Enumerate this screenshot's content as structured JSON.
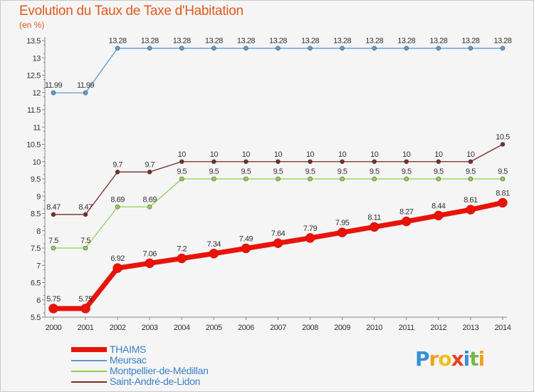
{
  "title": "Evolution du Taux de Taxe d'Habitation",
  "subtitle": "(en %)",
  "brand": {
    "text": "Proxiti",
    "letters": [
      {
        "ch": "P",
        "color": "#3a8fd8"
      },
      {
        "ch": "r",
        "color": "#f0a020"
      },
      {
        "ch": "o",
        "color": "#f0c020"
      },
      {
        "ch": "x",
        "color": "#e8402a"
      },
      {
        "ch": "i",
        "color": "#3a8fd8"
      },
      {
        "ch": "t",
        "color": "#7ab648"
      },
      {
        "ch": "i",
        "color": "#f0a020"
      }
    ]
  },
  "chart_data": {
    "type": "line",
    "title": "Evolution du Taux de Taxe d'Habitation",
    "ylabel": "(en %)",
    "xlabel": "",
    "x": [
      "2000",
      "2001",
      "2002",
      "2003",
      "2004",
      "2005",
      "2006",
      "2007",
      "2008",
      "2009",
      "2010",
      "2011",
      "2012",
      "2013",
      "2014"
    ],
    "ylim": [
      5.5,
      13.5
    ],
    "yticks": [
      "5.5",
      "6",
      "6.5",
      "7",
      "7.5",
      "8",
      "8.5",
      "9",
      "9.5",
      "10",
      "10.5",
      "11",
      "11.5",
      "12",
      "12.5",
      "13",
      "13.5"
    ],
    "grid": false,
    "legend_position": "bottom-left",
    "series": [
      {
        "name": "THAIMS",
        "color": "#e8140a",
        "values": [
          5.75,
          5.75,
          6.92,
          7.06,
          7.2,
          7.34,
          7.49,
          7.64,
          7.79,
          7.95,
          8.11,
          8.27,
          8.44,
          8.61,
          8.81
        ],
        "labels": [
          "5.75",
          "5.75",
          "6.92",
          "7.06",
          "7.2",
          "7.34",
          "7.49",
          "7.64",
          "7.79",
          "7.95",
          "8.11",
          "8.27",
          "8.44",
          "8.61",
          "8.81"
        ]
      },
      {
        "name": "Meursac",
        "color": "#5b9bd5",
        "values": [
          11.99,
          11.99,
          13.28,
          13.28,
          13.28,
          13.28,
          13.28,
          13.28,
          13.28,
          13.28,
          13.28,
          13.28,
          13.28,
          13.28,
          13.28
        ],
        "labels": [
          "11.99",
          "11.99",
          "13.28",
          "13.28",
          "13.28",
          "13.28",
          "13.28",
          "13.28",
          "13.28",
          "13.28",
          "13.28",
          "13.28",
          "13.28",
          "13.28",
          "13.28"
        ]
      },
      {
        "name": "Montpellier-de-Médillan",
        "color": "#8fd14f",
        "values": [
          7.5,
          7.5,
          8.69,
          8.69,
          9.5,
          9.5,
          9.5,
          9.5,
          9.5,
          9.5,
          9.5,
          9.5,
          9.5,
          9.5,
          9.5
        ],
        "labels": [
          "7.5",
          "7.5",
          "8.69",
          "8.69",
          "9.5",
          "9.5",
          "9.5",
          "9.5",
          "9.5",
          "9.5",
          "9.5",
          "9.5",
          "9.5",
          "9.5",
          "9.5"
        ]
      },
      {
        "name": "Saint-André-de-Lidon",
        "color": "#7a2a2a",
        "values": [
          8.47,
          8.47,
          9.7,
          9.7,
          10,
          10,
          10,
          10,
          10,
          10,
          10,
          10,
          10,
          10,
          10.5
        ],
        "labels": [
          "8.47",
          "8.47",
          "9.7",
          "9.7",
          "10",
          "10",
          "10",
          "10",
          "10",
          "10",
          "10",
          "10",
          "10",
          "10",
          "10.5"
        ]
      }
    ]
  }
}
